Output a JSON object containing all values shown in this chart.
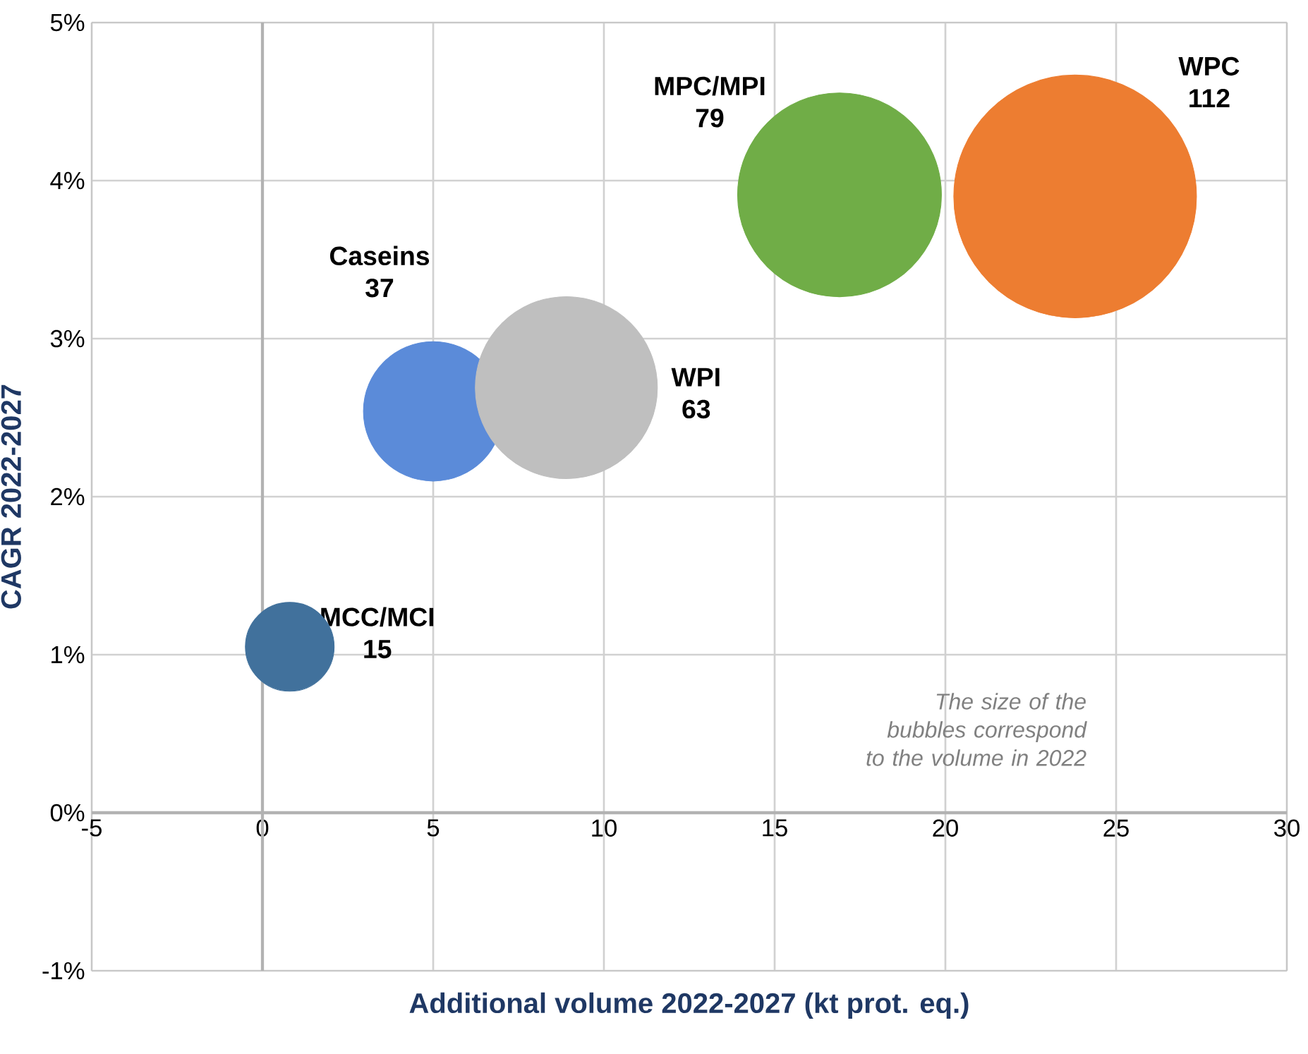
{
  "chart_data": {
    "type": "bubble",
    "xlabel": "Additional volume 2022-2027 (kt prot. eq.)",
    "ylabel": "CAGR 2022-2027",
    "xlim": [
      -5,
      30
    ],
    "ylim": [
      -1,
      5
    ],
    "xticks": [
      -5,
      0,
      5,
      10,
      15,
      20,
      25,
      30
    ],
    "yticks": [
      {
        "value": -1,
        "label": "-1%"
      },
      {
        "value": 0,
        "label": "0%"
      },
      {
        "value": 1,
        "label": "1%"
      },
      {
        "value": 2,
        "label": "2%"
      },
      {
        "value": 3,
        "label": "3%"
      },
      {
        "value": 4,
        "label": "4%"
      },
      {
        "value": 5,
        "label": "5%"
      }
    ],
    "grid": true,
    "annotations": [
      "The size of the bubbles correspond to the volume in 2022"
    ],
    "series": [
      {
        "name": "MCC/MCI",
        "color": "#41719c",
        "x": [
          0.8
        ],
        "values": [
          1.05
        ],
        "sizes": [
          15
        ],
        "value_labels": [
          "15"
        ]
      },
      {
        "name": "Caseins",
        "color": "#5b8bd9",
        "x": [
          5.0
        ],
        "values": [
          2.54
        ],
        "sizes": [
          37
        ],
        "value_labels": [
          "37"
        ]
      },
      {
        "name": "WPI",
        "color": "#bfbfbf",
        "x": [
          8.9
        ],
        "values": [
          2.69
        ],
        "sizes": [
          63
        ],
        "value_labels": [
          "63"
        ]
      },
      {
        "name": "MPC/MPI",
        "color": "#70ad47",
        "x": [
          16.9
        ],
        "values": [
          3.91
        ],
        "sizes": [
          79
        ],
        "value_labels": [
          "79"
        ]
      },
      {
        "name": "WPC",
        "color": "#ed7d31",
        "x": [
          23.8
        ],
        "values": [
          3.9
        ],
        "sizes": [
          112
        ],
        "value_labels": [
          "112"
        ]
      }
    ]
  }
}
